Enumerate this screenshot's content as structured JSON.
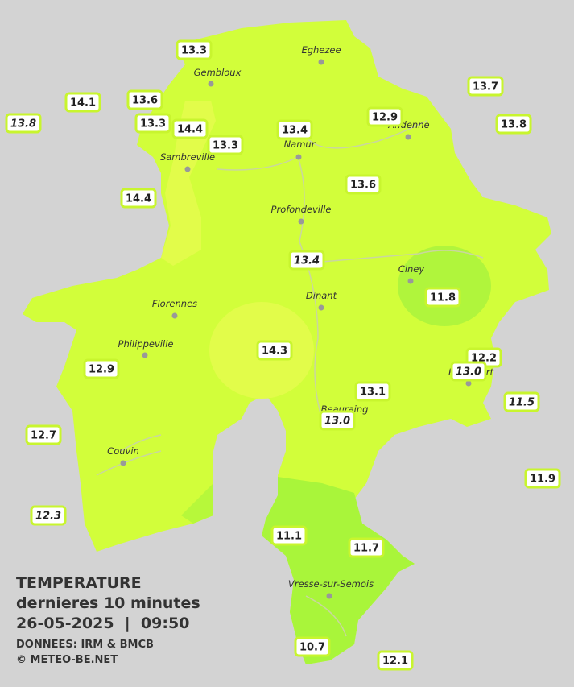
{
  "cities": [
    "Eghezee",
    "Gembloux",
    "Andenne",
    "Namur",
    "Sambreville",
    "Profondeville",
    "Ciney",
    "Dinant",
    "Florennes",
    "Philippeville",
    "Rochefort",
    "Beauraing",
    "Couvin",
    "Vresse-sur-Semois"
  ],
  "stations": [
    "13.3",
    "14.1",
    "13.6",
    "13.8",
    "13.3",
    "14.4",
    "13.3",
    "13.4",
    "12.9",
    "13.7",
    "13.8",
    "14.4",
    "13.6",
    "13.4",
    "11.8",
    "14.3",
    "12.2",
    "13.0",
    "12.9",
    "13.1",
    "11.5",
    "13.0",
    "12.7",
    "11.9",
    "12.3",
    "11.1",
    "11.7",
    "10.7",
    "12.1"
  ],
  "legend": {
    "title": "TEMPERATURE",
    "subtitle": "dernieres 10 minutes",
    "datetime": "26-05-2025  |  09:50",
    "source": "DONNEES: IRM & BMCB",
    "credit": "© METEO-BE.NET"
  }
}
